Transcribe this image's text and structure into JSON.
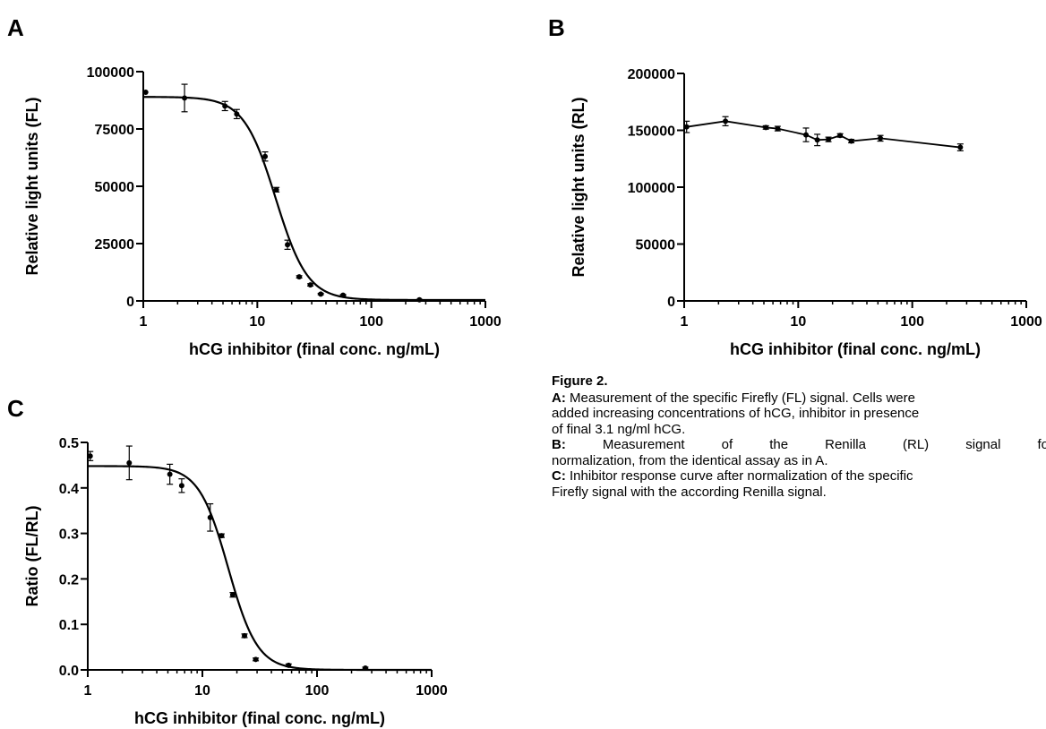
{
  "chart_data": [
    {
      "id": "A",
      "panel_letter": "A",
      "type": "scatter",
      "xscale": "log",
      "xlim": [
        1,
        1000
      ],
      "ylim": [
        0,
        100000
      ],
      "xticks": [
        1,
        10,
        100,
        1000
      ],
      "xtick_labels": [
        "1",
        "10",
        "100",
        "1000"
      ],
      "yticks": [
        0,
        25000,
        50000,
        75000,
        100000
      ],
      "ytick_labels": [
        "0",
        "25000",
        "50000",
        "75000",
        "100000"
      ],
      "xlabel": "hCG inhibitor (final conc. ng/mL)",
      "ylabel": "Relative light units (FL)",
      "grid": false,
      "points": {
        "x": [
          1.05,
          2.3,
          5.2,
          6.6,
          11.7,
          14.7,
          18.4,
          23.3,
          29.2,
          36.0,
          56.5,
          264
        ],
        "y": [
          91000,
          88500,
          85000,
          81500,
          63000,
          48500,
          24500,
          10500,
          7000,
          3000,
          2500,
          500
        ],
        "err": [
          0,
          6000,
          2000,
          2000,
          2000,
          1000,
          2000,
          500,
          500,
          300,
          300,
          200
        ]
      },
      "fit": {
        "model": "4PL",
        "top": 89000,
        "bottom": 400,
        "ec50": 14.5,
        "hill": 3.1
      }
    },
    {
      "id": "B",
      "panel_letter": "B",
      "type": "line",
      "xscale": "log",
      "xlim": [
        1,
        1000
      ],
      "ylim": [
        0,
        200000
      ],
      "xticks": [
        1,
        10,
        100,
        1000
      ],
      "xtick_labels": [
        "1",
        "10",
        "100",
        "1000"
      ],
      "yticks": [
        0,
        50000,
        100000,
        150000,
        200000
      ],
      "ytick_labels": [
        "0",
        "50000",
        "100000",
        "150000",
        "200000"
      ],
      "xlabel": "hCG inhibitor (final conc. ng/mL)",
      "ylabel": "Relative light units (RL)",
      "grid": false,
      "points": {
        "x": [
          1.05,
          2.3,
          5.2,
          6.6,
          11.7,
          14.7,
          18.4,
          23.3,
          29.2,
          52.5,
          264
        ],
        "y": [
          153000,
          158000,
          152500,
          151500,
          146000,
          141500,
          142000,
          145500,
          140500,
          143000,
          135000
        ],
        "err": [
          5000,
          4000,
          1500,
          2000,
          6000,
          5000,
          2000,
          1500,
          1500,
          2500,
          3000
        ]
      }
    },
    {
      "id": "C",
      "panel_letter": "C",
      "type": "scatter",
      "xscale": "log",
      "xlim": [
        1,
        1000
      ],
      "ylim": [
        0,
        0.5
      ],
      "xticks": [
        1,
        10,
        100,
        1000
      ],
      "xtick_labels": [
        "1",
        "10",
        "100",
        "1000"
      ],
      "yticks": [
        0,
        0.1,
        0.2,
        0.3,
        0.4,
        0.5
      ],
      "ytick_labels": [
        "0.0",
        "0.1",
        "0.2",
        "0.3",
        "0.4",
        "0.5"
      ],
      "xlabel": "hCG inhibitor (final conc. ng/mL)",
      "ylabel": "Ratio (FL/RL)",
      "grid": false,
      "points": {
        "x": [
          1.05,
          2.3,
          5.2,
          6.6,
          11.7,
          14.7,
          18.4,
          23.3,
          29.2,
          56.5,
          264
        ],
        "y": [
          0.47,
          0.455,
          0.43,
          0.405,
          0.335,
          0.295,
          0.165,
          0.075,
          0.023,
          0.01,
          0.004
        ],
        "err": [
          0.01,
          0.037,
          0.022,
          0.015,
          0.03,
          0.004,
          0.005,
          0.004,
          0.003,
          0.003,
          0.002
        ]
      },
      "fit": {
        "model": "4PL",
        "top": 0.448,
        "bottom": 0.0,
        "ec50": 16.8,
        "hill": 3.4
      }
    }
  ],
  "caption": {
    "title": "Figure 2.",
    "a_tag": "A:",
    "a_line1": " Measurement of the specific Firefly (FL) signal. Cells were",
    "a_line2": "added increasing concentrations of hCG, inhibitor in presence",
    "a_line3": "of final 3.1 ng/ml hCG.",
    "b_tag": "B:",
    "b_words": [
      "Measurement",
      "of",
      "the",
      "Renilla",
      "(RL)",
      "signal",
      "for"
    ],
    "b_line2": "normalization, from the identical assay as in A.",
    "c_tag": "C:",
    "c_line1": " Inhibitor response curve after normalization of the specific",
    "c_line2": "Firefly signal with the according Renilla signal."
  }
}
